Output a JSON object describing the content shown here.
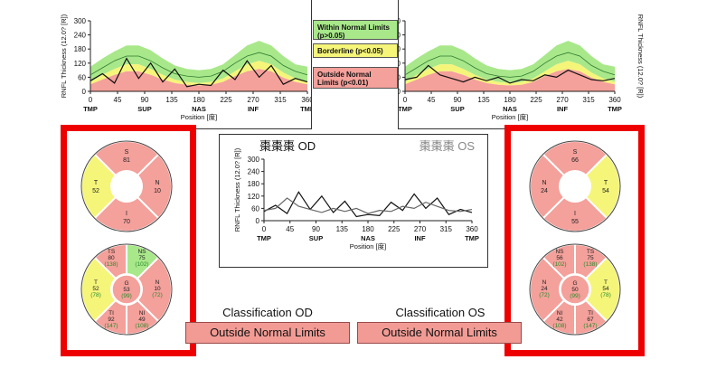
{
  "legend": {
    "within": "Within Normal Limits (p>0.05)",
    "borderline": "Borderline (p<0.05)",
    "outside": "Outside Normal Limits (p<0.01)"
  },
  "colors": {
    "green": "#a8e88a",
    "yellow": "#f5f57a",
    "red": "#f4a09b",
    "frame_red": "#ee0000"
  },
  "classification": {
    "od_title": "Classification OD",
    "od_result": "Outside Normal Limits",
    "os_title": "Classification OS",
    "os_result": "Outside Normal Limits"
  },
  "chart_data": [
    {
      "id": "od-profile",
      "type": "line",
      "ylabel": "RNFL Thickness (12.0? [R])",
      "xlabel": "Position [度]",
      "xlim": [
        0,
        360
      ],
      "ylim": [
        0,
        300
      ],
      "xticks": [
        0,
        45,
        90,
        135,
        180,
        225,
        270,
        315,
        360
      ],
      "yticks": [
        0,
        60,
        120,
        180,
        240,
        300
      ],
      "region_labels": [
        "TMP",
        "SUP",
        "NAS",
        "INF",
        "TMP"
      ],
      "x": [
        0,
        20,
        40,
        60,
        80,
        100,
        120,
        140,
        160,
        180,
        200,
        220,
        240,
        260,
        280,
        300,
        320,
        340,
        360
      ],
      "normal_band": [
        [
          40,
          105
        ],
        [
          70,
          140
        ],
        [
          95,
          170
        ],
        [
          115,
          195
        ],
        [
          115,
          195
        ],
        [
          95,
          175
        ],
        [
          70,
          140
        ],
        [
          50,
          110
        ],
        [
          40,
          95
        ],
        [
          35,
          90
        ],
        [
          40,
          95
        ],
        [
          55,
          115
        ],
        [
          85,
          155
        ],
        [
          115,
          195
        ],
        [
          130,
          215
        ],
        [
          115,
          195
        ],
        [
          80,
          150
        ],
        [
          55,
          115
        ],
        [
          40,
          105
        ]
      ],
      "borderline_floor": [
        30,
        50,
        70,
        85,
        85,
        70,
        50,
        35,
        28,
        25,
        28,
        40,
        65,
        85,
        95,
        85,
        58,
        40,
        30
      ],
      "series": [
        {
          "name": "Normative mean",
          "values": [
            70,
            100,
            130,
            150,
            150,
            130,
            100,
            75,
            65,
            60,
            65,
            85,
            120,
            150,
            165,
            150,
            110,
            85,
            70
          ]
        },
        {
          "name": "Eye",
          "values": [
            45,
            75,
            35,
            140,
            55,
            120,
            40,
            95,
            20,
            30,
            25,
            90,
            50,
            130,
            60,
            110,
            30,
            55,
            40
          ]
        }
      ]
    },
    {
      "id": "os-profile",
      "type": "line",
      "ylabel": "RNFL Thickness (12.0? [R])",
      "xlabel": "Position [度]",
      "xlim": [
        0,
        360
      ],
      "ylim": [
        0,
        300
      ],
      "xticks": [
        0,
        45,
        90,
        135,
        180,
        225,
        270,
        315,
        360
      ],
      "yticks": [
        0,
        60,
        120,
        180,
        240,
        300
      ],
      "region_labels": [
        "TMP",
        "SUP",
        "NAS",
        "INF",
        "TMP"
      ],
      "x": [
        0,
        20,
        40,
        60,
        80,
        100,
        120,
        140,
        160,
        180,
        200,
        220,
        240,
        260,
        280,
        300,
        320,
        340,
        360
      ],
      "normal_band": [
        [
          40,
          105
        ],
        [
          70,
          140
        ],
        [
          95,
          170
        ],
        [
          115,
          195
        ],
        [
          115,
          195
        ],
        [
          95,
          175
        ],
        [
          70,
          140
        ],
        [
          50,
          110
        ],
        [
          40,
          95
        ],
        [
          35,
          90
        ],
        [
          40,
          95
        ],
        [
          55,
          115
        ],
        [
          85,
          155
        ],
        [
          115,
          195
        ],
        [
          130,
          215
        ],
        [
          115,
          195
        ],
        [
          80,
          150
        ],
        [
          55,
          115
        ],
        [
          40,
          105
        ]
      ],
      "borderline_floor": [
        30,
        50,
        70,
        85,
        85,
        70,
        50,
        35,
        28,
        25,
        28,
        40,
        65,
        85,
        95,
        85,
        58,
        40,
        30
      ],
      "series": [
        {
          "name": "Normative mean",
          "values": [
            70,
            100,
            130,
            150,
            150,
            130,
            100,
            75,
            65,
            60,
            65,
            85,
            120,
            150,
            165,
            150,
            110,
            85,
            70
          ]
        },
        {
          "name": "Eye",
          "values": [
            50,
            60,
            110,
            70,
            55,
            40,
            60,
            45,
            60,
            35,
            50,
            45,
            70,
            60,
            90,
            70,
            50,
            45,
            55
          ]
        }
      ]
    },
    {
      "id": "comparison",
      "type": "line",
      "title_od": "棗棗棗 OD",
      "title_os": "棗棗棗 OS",
      "ylabel": "RNFL Thickness (12.0? [R])",
      "xlabel": "Position [度]",
      "xlim": [
        0,
        360
      ],
      "ylim": [
        0,
        300
      ],
      "xticks": [
        0,
        45,
        90,
        135,
        180,
        225,
        270,
        315,
        360
      ],
      "yticks": [
        0,
        60,
        120,
        180,
        240,
        300
      ],
      "region_labels": [
        "TMP",
        "SUP",
        "NAS",
        "INF",
        "TMP"
      ],
      "x": [
        0,
        20,
        40,
        60,
        80,
        100,
        120,
        140,
        160,
        180,
        200,
        220,
        240,
        260,
        280,
        300,
        320,
        340,
        360
      ],
      "series": [
        {
          "name": "OD",
          "values": [
            45,
            75,
            35,
            140,
            55,
            120,
            40,
            95,
            20,
            30,
            25,
            90,
            50,
            130,
            60,
            110,
            30,
            55,
            40
          ]
        },
        {
          "name": "OS",
          "values": [
            50,
            60,
            110,
            70,
            55,
            40,
            60,
            45,
            60,
            35,
            50,
            45,
            70,
            60,
            90,
            70,
            50,
            45,
            55
          ]
        }
      ]
    }
  ],
  "od_quadrants": {
    "S": {
      "label": "S",
      "value": "81",
      "status": "red"
    },
    "T": {
      "label": "T",
      "value": "52",
      "status": "yellow"
    },
    "N": {
      "label": "N",
      "value": "10",
      "status": "red"
    },
    "I": {
      "label": "I",
      "value": "70",
      "status": "red"
    }
  },
  "os_quadrants": {
    "S": {
      "label": "S",
      "value": "66",
      "status": "red"
    },
    "N": {
      "label": "N",
      "value": "24",
      "status": "red"
    },
    "T": {
      "label": "T",
      "value": "54",
      "status": "yellow"
    },
    "I": {
      "label": "I",
      "value": "55",
      "status": "red"
    }
  },
  "od_sectors": {
    "TS": {
      "label": "TS",
      "value": "80",
      "norm": "(138)",
      "status": "red"
    },
    "NS": {
      "label": "NS",
      "value": "75",
      "norm": "(102)",
      "status": "green"
    },
    "T": {
      "label": "T",
      "value": "52",
      "norm": "(78)",
      "status": "yellow"
    },
    "G": {
      "label": "G",
      "value": "53",
      "norm": "(99)",
      "status": "red"
    },
    "N": {
      "label": "N",
      "value": "10",
      "norm": "(72)",
      "status": "red"
    },
    "TI": {
      "label": "TI",
      "value": "92",
      "norm": "(147)",
      "status": "red"
    },
    "NI": {
      "label": "NI",
      "value": "49",
      "norm": "(108)",
      "status": "red"
    }
  },
  "os_sectors": {
    "NS": {
      "label": "NS",
      "value": "56",
      "norm": "(102)",
      "status": "red"
    },
    "TS": {
      "label": "TS",
      "value": "75",
      "norm": "(138)",
      "status": "red"
    },
    "N": {
      "label": "N",
      "value": "24",
      "norm": "(72)",
      "status": "red"
    },
    "G": {
      "label": "G",
      "value": "50",
      "norm": "(99)",
      "status": "red"
    },
    "T": {
      "label": "T",
      "value": "54",
      "norm": "(78)",
      "status": "yellow"
    },
    "NI": {
      "label": "NI",
      "value": "42",
      "norm": "(108)",
      "status": "red"
    },
    "TI": {
      "label": "TI",
      "value": "67",
      "norm": "(147)",
      "status": "red"
    }
  }
}
